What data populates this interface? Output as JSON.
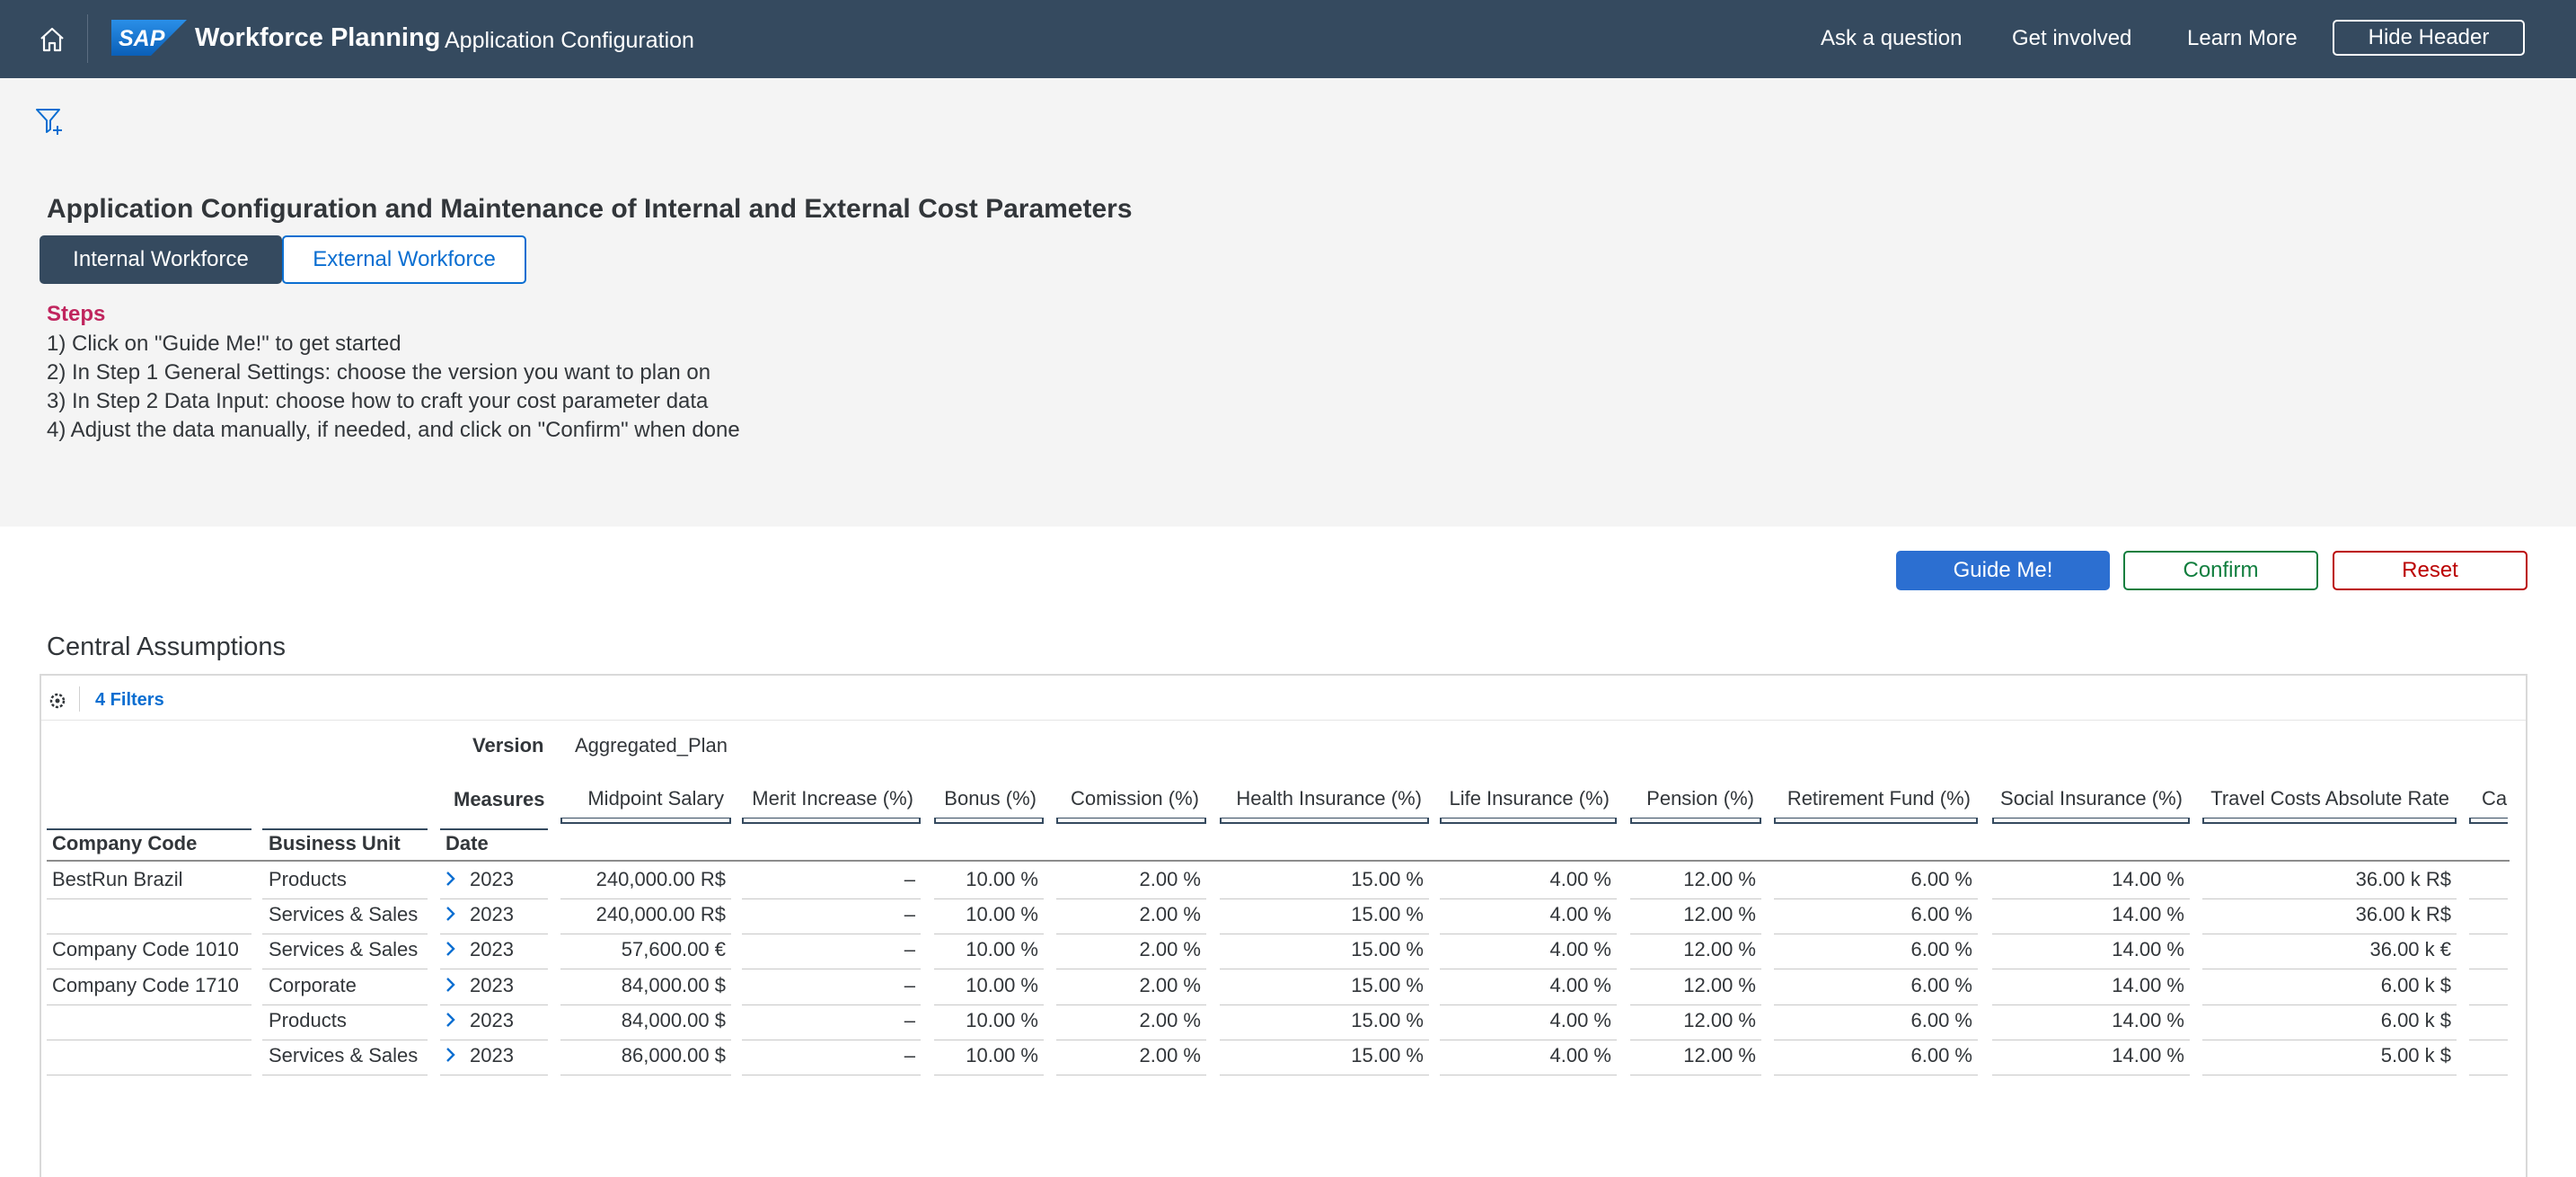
{
  "shell": {
    "app_title": "Workforce Planning",
    "app_subtitle": "Application Configuration",
    "links": [
      "Ask a question",
      "Get involved",
      "Learn More"
    ],
    "hide_header": "Hide Header",
    "logo_text": "SAP"
  },
  "page": {
    "title": "Application Configuration and Maintenance of Internal and External Cost Parameters",
    "tabs": [
      "Internal Workforce",
      "External Workforce"
    ],
    "steps_title": "Steps",
    "steps": [
      "1) Click on \"Guide Me!\" to get started",
      "2) In Step 1 General Settings: choose the version you want to plan on",
      "3) In Step 2 Data Input: choose how to craft your cost parameter data",
      "4) Adjust the data manually, if needed, and click on \"Confirm\" when done"
    ],
    "buttons": {
      "guide": "Guide Me!",
      "confirm": "Confirm",
      "reset": "Reset"
    },
    "section_title": "Central Assumptions"
  },
  "table": {
    "filters_label": "4 Filters",
    "version_label": "Version",
    "version_value": "Aggregated_Plan",
    "measures_label": "Measures",
    "dim_headers": [
      "Company Code",
      "Business Unit",
      "Date"
    ],
    "measures": [
      "Midpoint Salary",
      "Merit Increase (%)",
      "Bonus (%)",
      "Comission (%)",
      "Health Insurance (%)",
      "Life Insurance (%)",
      "Pension (%)",
      "Retirement Fund (%)",
      "Social Insurance (%)",
      "Travel Costs Absolute Rate",
      "Ca"
    ],
    "rows": [
      {
        "company": "BestRun Brazil",
        "unit": "Products",
        "date": "2023",
        "values": [
          "240,000.00 R$",
          "–",
          "10.00 %",
          "2.00 %",
          "15.00 %",
          "4.00 %",
          "12.00 %",
          "6.00 %",
          "14.00 %",
          "36.00 k R$"
        ]
      },
      {
        "company": "",
        "unit": "Services & Sales",
        "date": "2023",
        "values": [
          "240,000.00 R$",
          "–",
          "10.00 %",
          "2.00 %",
          "15.00 %",
          "4.00 %",
          "12.00 %",
          "6.00 %",
          "14.00 %",
          "36.00 k R$"
        ]
      },
      {
        "company": "Company Code 1010",
        "unit": "Services & Sales",
        "date": "2023",
        "values": [
          "57,600.00 €",
          "–",
          "10.00 %",
          "2.00 %",
          "15.00 %",
          "4.00 %",
          "12.00 %",
          "6.00 %",
          "14.00 %",
          "36.00 k €"
        ]
      },
      {
        "company": "Company Code 1710",
        "unit": "Corporate",
        "date": "2023",
        "values": [
          "84,000.00 $",
          "–",
          "10.00 %",
          "2.00 %",
          "15.00 %",
          "4.00 %",
          "12.00 %",
          "6.00 %",
          "14.00 %",
          "6.00 k $"
        ]
      },
      {
        "company": "",
        "unit": "Products",
        "date": "2023",
        "values": [
          "84,000.00 $",
          "–",
          "10.00 %",
          "2.00 %",
          "15.00 %",
          "4.00 %",
          "12.00 %",
          "6.00 %",
          "14.00 %",
          "6.00 k $"
        ]
      },
      {
        "company": "",
        "unit": "Services & Sales",
        "date": "2023",
        "values": [
          "86,000.00 $",
          "–",
          "10.00 %",
          "2.00 %",
          "15.00 %",
          "4.00 %",
          "12.00 %",
          "6.00 %",
          "14.00 %",
          "5.00 k $"
        ]
      }
    ]
  },
  "colors": {
    "shell": "#354a5f",
    "accent": "#0a6ed1",
    "steps": "#c0255e",
    "confirm": "#107e3e",
    "reset": "#bb0000"
  }
}
